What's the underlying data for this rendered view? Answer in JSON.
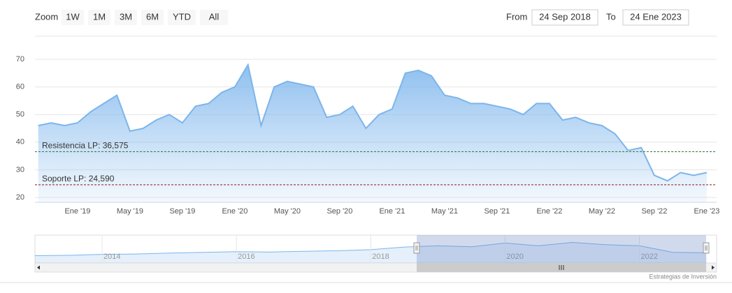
{
  "toolbar": {
    "zoom_label": "Zoom",
    "buttons": [
      "1W",
      "1M",
      "3M",
      "6M",
      "YTD",
      "All"
    ],
    "from_label": "From",
    "from": "24 Sep 2018",
    "to_label": "To",
    "to": "24 Ene 2023"
  },
  "chart_data": {
    "type": "area",
    "categories": [
      null,
      null,
      null,
      "Ene '19",
      null,
      null,
      null,
      "May '19",
      null,
      null,
      null,
      "Sep '19",
      null,
      null,
      null,
      "Ene '20",
      null,
      null,
      null,
      "May '20",
      null,
      null,
      null,
      "Sep '20",
      null,
      null,
      null,
      "Ene '21",
      null,
      null,
      null,
      "May '21",
      null,
      null,
      null,
      "Sep '21",
      null,
      null,
      null,
      "Ene '22",
      null,
      null,
      null,
      "May '22",
      null,
      null,
      null,
      "Sep '22",
      null,
      null,
      null,
      "Ene '23"
    ],
    "series": [
      {
        "color": "#7cb5ec",
        "values": [
          46,
          47,
          46,
          47,
          51,
          54,
          57,
          44,
          45,
          48,
          50,
          47,
          53,
          54,
          58,
          60,
          68,
          46,
          60,
          62,
          61,
          60,
          49,
          50,
          53,
          45,
          50,
          52,
          65,
          66,
          64,
          57,
          56,
          54,
          54,
          53,
          52,
          50,
          54,
          54,
          48,
          49,
          47,
          46,
          43,
          37,
          38,
          28,
          26,
          29,
          28,
          29
        ]
      }
    ],
    "ylim": [
      20,
      70
    ],
    "yticks": [
      20,
      30,
      40,
      50,
      60,
      70
    ],
    "grid": true,
    "plot_lines": [
      {
        "label": "Resistencia LP: 36,575",
        "value": 36.575,
        "color": "#2e6b3a"
      },
      {
        "label": "Soporte LP: 24,590",
        "value": 24.59,
        "color": "#8b1a1a"
      }
    ]
  },
  "navigator": {
    "x": [
      2013,
      2013.5,
      2014,
      2014.5,
      2015,
      2015.5,
      2016,
      2016.5,
      2017,
      2017.5,
      2018,
      2018.5,
      2019,
      2019.5,
      2020,
      2020.5,
      2021,
      2021.5,
      2022,
      2022.5,
      2023
    ],
    "values": [
      20,
      21,
      24,
      25,
      28,
      30,
      32,
      31,
      33,
      35,
      38,
      46,
      50,
      47,
      58,
      50,
      60,
      53,
      50,
      30,
      29
    ],
    "xlim": [
      2013,
      2023.15
    ],
    "ylim": [
      0,
      80
    ],
    "xticks": [
      2014,
      2016,
      2018,
      2020,
      2022
    ]
  },
  "credits": "Estrategias de Inversión"
}
